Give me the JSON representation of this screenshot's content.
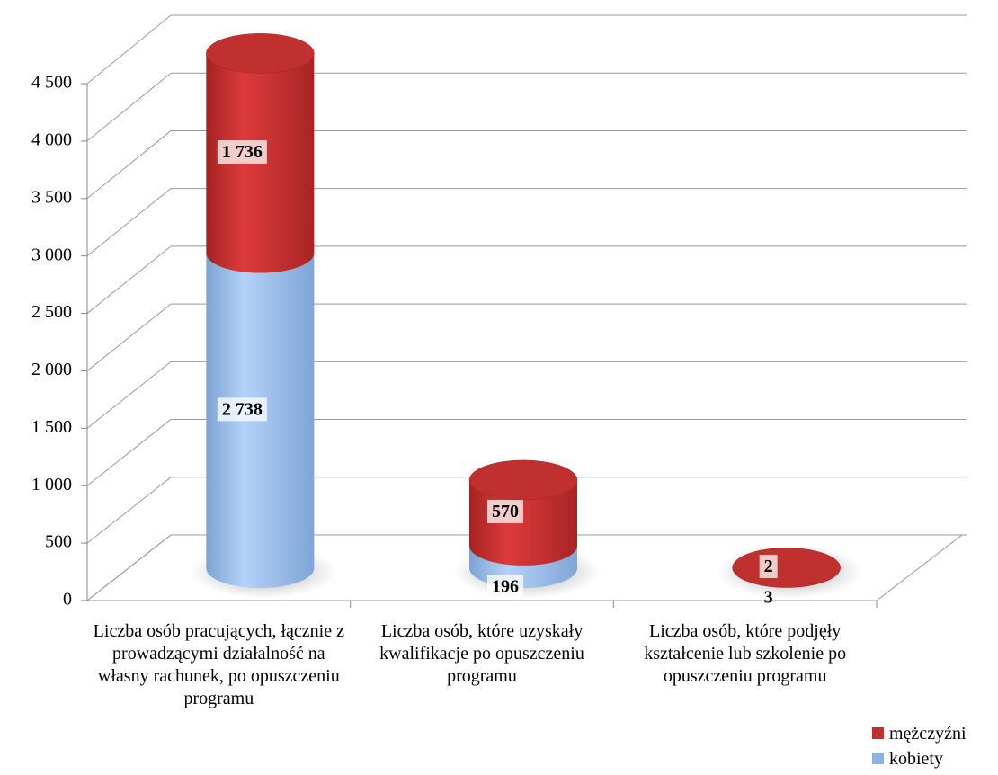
{
  "chart_data": {
    "type": "bar3d_stacked",
    "categories": [
      "Liczba osób pracujących, łącznie z prowadzącymi działalność na własny rachunek, po opuszczeniu programu",
      "Liczba osób, które uzyskały kwalifikacje po opuszczeniu programu",
      "Liczba osób, które podjęły kształcenie lub szkolenie po opuszczeniu programu"
    ],
    "series": [
      {
        "name": "kobiety",
        "color": "#8db3e2",
        "values": [
          2738,
          196,
          3
        ],
        "value_labels": [
          "2 738",
          "196",
          "3"
        ]
      },
      {
        "name": "mężczyźni",
        "color": "#c0302e",
        "values": [
          1736,
          570,
          2
        ],
        "value_labels": [
          "1 736",
          "570",
          "2"
        ]
      }
    ],
    "ylim": [
      0,
      4500
    ],
    "yticks": [
      0,
      500,
      {
        "value": 1000,
        "label": "1 000"
      },
      {
        "value": 1500,
        "label": "1 500"
      },
      {
        "value": 2000,
        "label": "2 000"
      },
      {
        "value": 2500,
        "label": "2 500"
      },
      {
        "value": 3000,
        "label": "3 000"
      },
      {
        "value": 3500,
        "label": "3 500"
      },
      {
        "value": 4000,
        "label": "4 000"
      },
      {
        "value": 4500,
        "label": "4 500"
      }
    ],
    "grid": true,
    "legend": "bottom-right"
  }
}
